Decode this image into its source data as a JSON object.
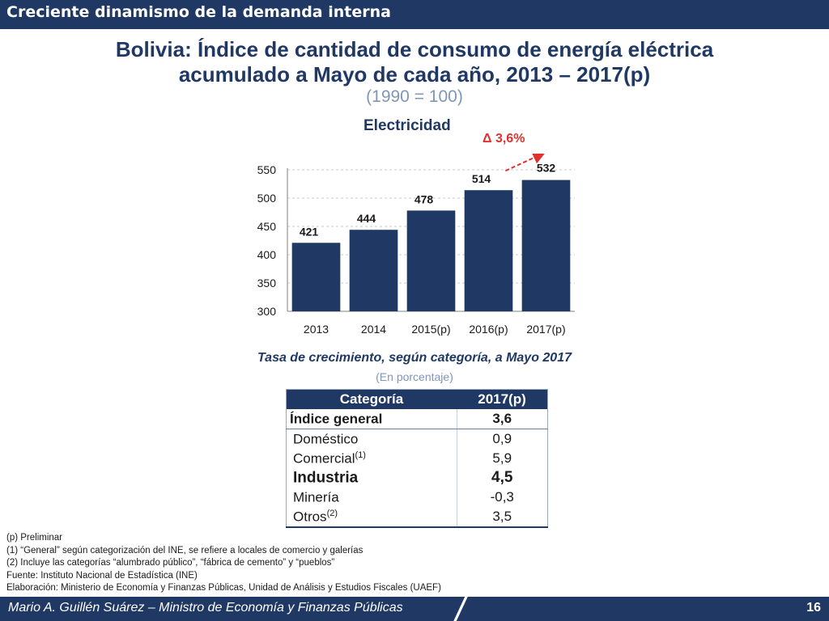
{
  "header": {
    "title": "Creciente dinamismo de la demanda interna"
  },
  "title": {
    "line1": "Bolivia: Índice de cantidad de consumo de energía eléctrica",
    "line2": "acumulado a Mayo de cada año, 2013 – 2017(p)",
    "base": "(1990 = 100)"
  },
  "chart_data": {
    "type": "bar",
    "title": "Electricidad",
    "categories": [
      "2013",
      "2014",
      "2015(p)",
      "2016(p)",
      "2017(p)"
    ],
    "values": [
      421,
      444,
      478,
      514,
      532
    ],
    "ylim": [
      300,
      550
    ],
    "yticks": [
      "550",
      "500",
      "450",
      "400",
      "350",
      "300"
    ],
    "grid": true,
    "bar_color": "#1f3864",
    "annotation": {
      "text": "Δ 3,6%",
      "from": "2016(p)",
      "to": "2017(p)",
      "color": "#e03030"
    }
  },
  "table": {
    "title": "Tasa de crecimiento, según categoría, a Mayo 2017",
    "subtitle": "(En porcentaje)",
    "headers": [
      "Categoría",
      "2017(p)"
    ],
    "rows": [
      {
        "category": "Índice general",
        "sup": "",
        "value": "3,6"
      },
      {
        "category": "Doméstico",
        "sup": "",
        "value": "0,9"
      },
      {
        "category": "Comercial",
        "sup": "(1)",
        "value": "5,9"
      },
      {
        "category": "Industria",
        "sup": "",
        "value": "4,5"
      },
      {
        "category": "Minería",
        "sup": "",
        "value": "-0,3"
      },
      {
        "category": "Otros",
        "sup": "(2)",
        "value": "3,5"
      }
    ]
  },
  "notes": [
    "(p) Preliminar",
    "(1) “General” según categorización del INE, se refiere a locales de comercio y galerías",
    "(2) Incluye las categorías “alumbrado público”, “fábrica de cemento” y “pueblos”",
    "Fuente: Instituto Nacional de Estadística (INE)",
    "Elaboración: Ministerio de Economía y Finanzas Públicas, Unidad de Análisis y Estudios Fiscales (UAEF)"
  ],
  "footer": {
    "text": "Mario A. Guillén Suárez – Ministro de Economía y Finanzas Públicas",
    "page": "16"
  },
  "colors": {
    "brand": "#1f3864",
    "accent_red": "#e03030",
    "subtle": "#8096b8"
  }
}
